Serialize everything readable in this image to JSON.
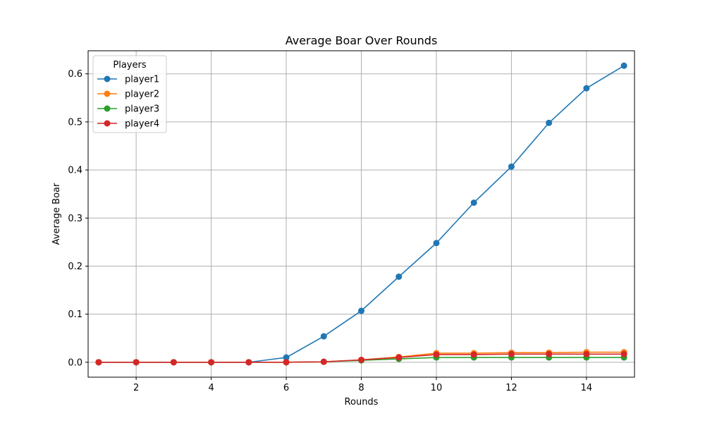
{
  "chart_data": {
    "type": "line",
    "title": "Average Boar Over Rounds",
    "xlabel": "Rounds",
    "ylabel": "Average Boar",
    "xlim": [
      0.72,
      15.28
    ],
    "ylim": [
      -0.031,
      0.648
    ],
    "xticks": [
      2,
      4,
      6,
      8,
      10,
      12,
      14
    ],
    "yticks": [
      0.0,
      0.1,
      0.2,
      0.3,
      0.4,
      0.5,
      0.6
    ],
    "ytick_labels": [
      "0.0",
      "0.1",
      "0.2",
      "0.3",
      "0.4",
      "0.5",
      "0.6"
    ],
    "grid": true,
    "legend": {
      "title": "Players",
      "placement": "top-left"
    },
    "x": [
      1,
      2,
      3,
      4,
      5,
      6,
      7,
      8,
      9,
      10,
      11,
      12,
      13,
      14,
      15
    ],
    "series": [
      {
        "name": "player1",
        "color": "#1f77b4",
        "values": [
          0,
          0,
          0,
          0,
          0,
          0.01,
          0.054,
          0.107,
          0.178,
          0.248,
          0.332,
          0.407,
          0.498,
          0.57,
          0.617
        ]
      },
      {
        "name": "player2",
        "color": "#ff7f0e",
        "values": [
          0,
          0,
          0,
          0,
          0,
          0,
          0.001,
          0.005,
          0.011,
          0.019,
          0.019,
          0.02,
          0.02,
          0.021,
          0.021
        ]
      },
      {
        "name": "player3",
        "color": "#2ca02c",
        "values": [
          0,
          0,
          0,
          0,
          0,
          0,
          0.001,
          0.004,
          0.007,
          0.01,
          0.01,
          0.01,
          0.01,
          0.01,
          0.01
        ]
      },
      {
        "name": "player4",
        "color": "#d62728",
        "values": [
          0,
          0,
          0,
          0,
          0,
          0,
          0.001,
          0.005,
          0.01,
          0.016,
          0.016,
          0.017,
          0.017,
          0.017,
          0.017
        ]
      }
    ]
  }
}
